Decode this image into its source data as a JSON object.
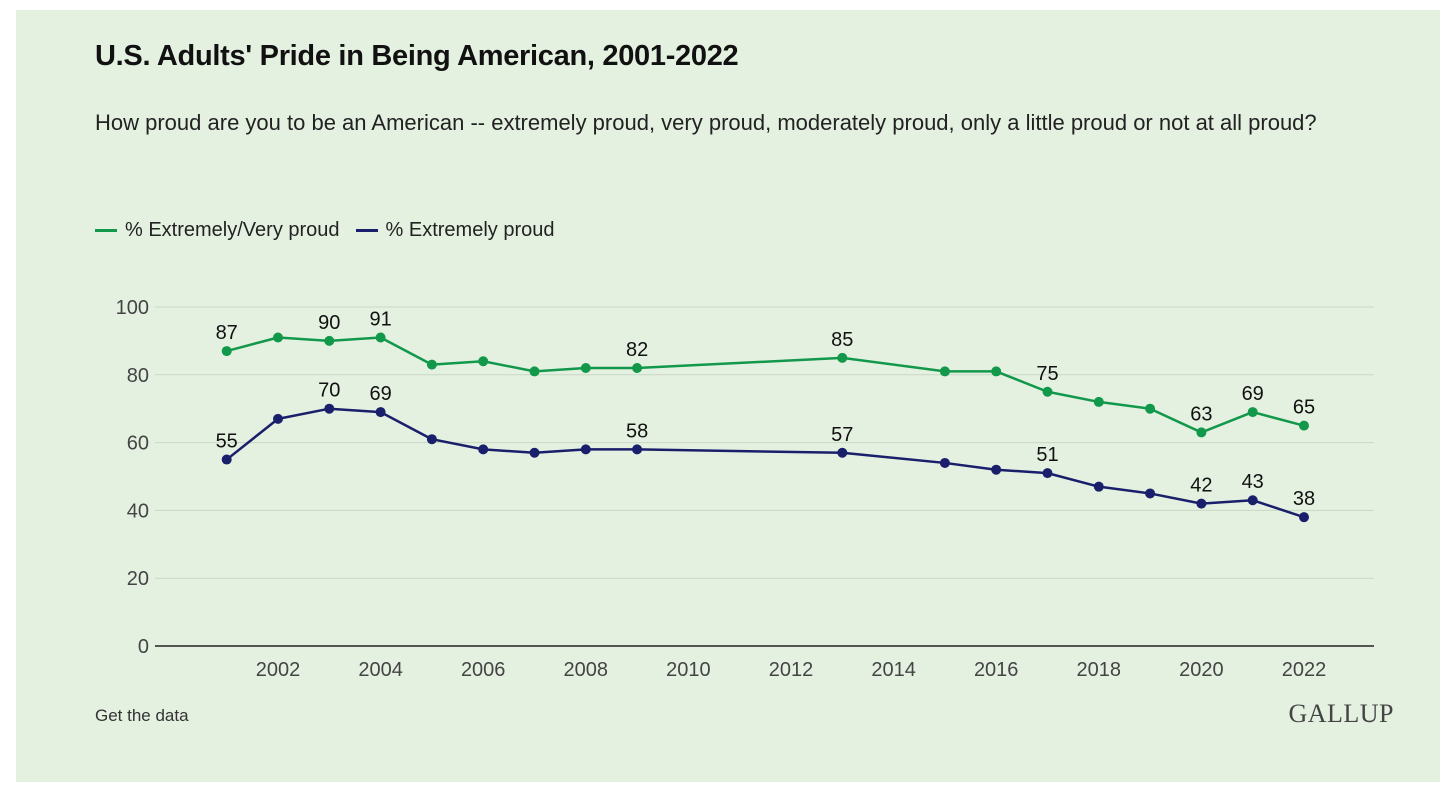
{
  "header": {
    "title": "U.S. Adults' Pride in Being American, 2001-2022",
    "subtitle": "How proud are you to be an American -- extremely proud, very proud, moderately proud, only a little proud or not at all proud?"
  },
  "colors": {
    "background": "#e4f1e1",
    "green": "#12984a",
    "navy": "#1a1f6b",
    "grid": "#c9d6c5"
  },
  "footer": {
    "link_label": "Get the data",
    "brand": "GALLUP"
  },
  "chart_data": {
    "type": "line",
    "title": "U.S. Adults' Pride in Being American, 2001-2022",
    "xlabel": "",
    "ylabel": "",
    "xlim": [
      2000,
      2023
    ],
    "ylim": [
      0,
      100
    ],
    "yticks": [
      0,
      20,
      40,
      60,
      80,
      100
    ],
    "xticks": [
      2002,
      2004,
      2006,
      2008,
      2010,
      2012,
      2014,
      2016,
      2018,
      2020,
      2022
    ],
    "legend": "top-left",
    "series": [
      {
        "name": "% Extremely/Very proud",
        "color": "#12984a",
        "x": [
          2001,
          2002,
          2003,
          2004,
          2005,
          2006,
          2007,
          2008,
          2009,
          2013,
          2015,
          2016,
          2017,
          2018,
          2019,
          2020,
          2021,
          2022
        ],
        "values": [
          87,
          91,
          90,
          91,
          83,
          84,
          81,
          82,
          82,
          85,
          81,
          81,
          75,
          72,
          70,
          63,
          69,
          65
        ],
        "labeled_x": [
          2001,
          2003,
          2004,
          2009,
          2013,
          2017,
          2020,
          2021,
          2022
        ]
      },
      {
        "name": "% Extremely proud",
        "color": "#1a1f6b",
        "x": [
          2001,
          2002,
          2003,
          2004,
          2005,
          2006,
          2007,
          2008,
          2009,
          2013,
          2015,
          2016,
          2017,
          2018,
          2019,
          2020,
          2021,
          2022
        ],
        "values": [
          55,
          67,
          70,
          69,
          61,
          58,
          57,
          58,
          58,
          57,
          54,
          52,
          51,
          47,
          45,
          42,
          43,
          38
        ],
        "labeled_x": [
          2001,
          2003,
          2004,
          2009,
          2013,
          2017,
          2020,
          2021,
          2022
        ]
      }
    ]
  }
}
